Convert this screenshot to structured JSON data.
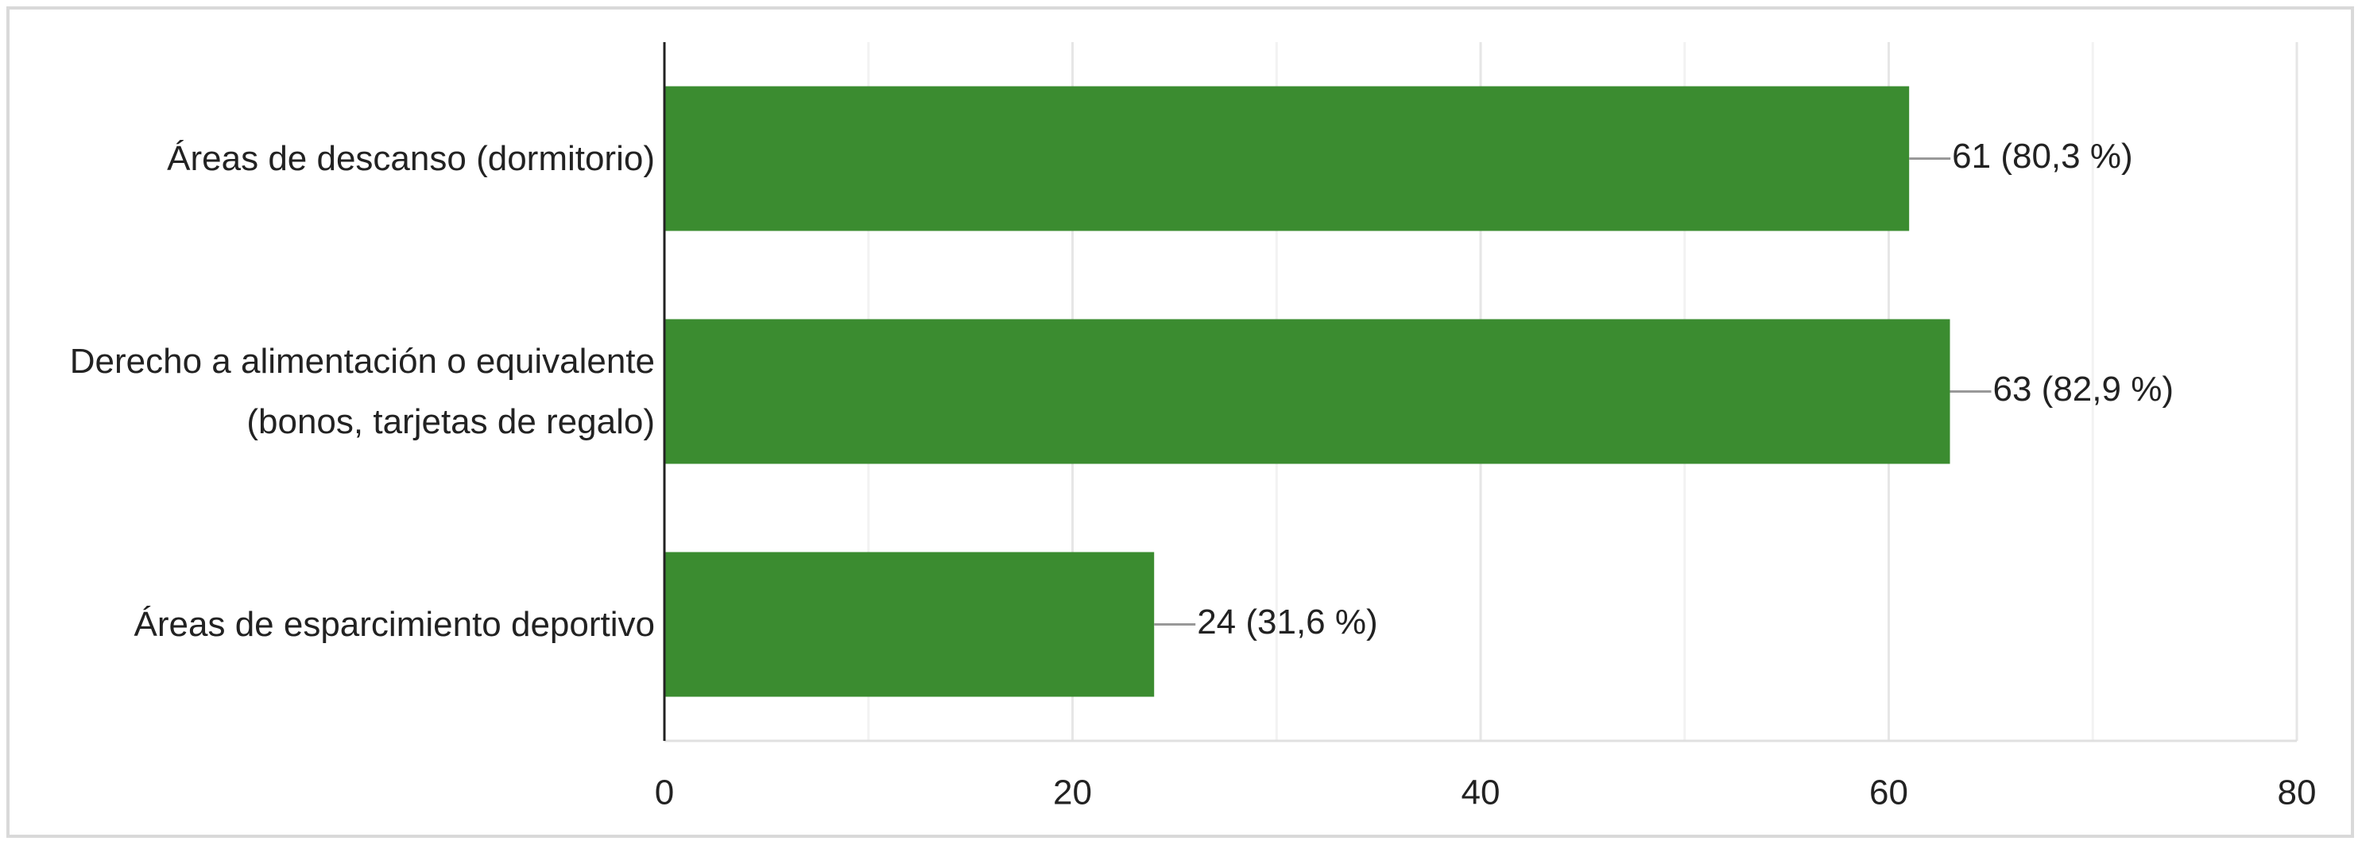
{
  "chart_data": {
    "type": "bar",
    "orientation": "horizontal",
    "categories": [
      "Áreas de descanso (dormitorio)",
      "Derecho a alimentación o equivalente (bonos, tarjetas de regalo)",
      "Áreas de esparcimiento deportivo"
    ],
    "values": [
      61,
      63,
      24
    ],
    "value_labels": [
      "61 (80,3 %)",
      "63 (82,9 %)",
      "24 (31,6 %)"
    ],
    "color": "#3b8c30",
    "xlim": [
      0,
      80
    ],
    "xticks": [
      0,
      20,
      40,
      60,
      80
    ],
    "grid": true,
    "minor_grid": true
  }
}
